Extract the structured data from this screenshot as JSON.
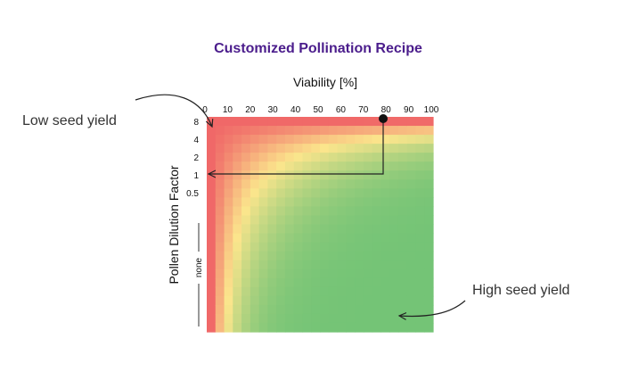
{
  "chart_data": {
    "type": "heatmap",
    "title": "Customized Pollination Recipe",
    "title_color": "#4b1d8c",
    "xlabel": "Viability [%]",
    "ylabel": "Pollen Dilution Factor",
    "x_ticks": [
      "0",
      "10",
      "20",
      "30",
      "40",
      "50",
      "60",
      "70",
      "80",
      "90",
      "100"
    ],
    "y_ticks": [
      "8",
      "4",
      "2",
      "1",
      "0.5",
      "none"
    ],
    "xlim": [
      0,
      100
    ],
    "colors": {
      "low": "#f06868",
      "mid": "#fbe58c",
      "high": "#74c476"
    },
    "annotations": [
      {
        "text": "Low seed yield"
      },
      {
        "text": "High seed yield"
      }
    ],
    "highlight_point": {
      "x": 80,
      "y": "8",
      "y_target": "1"
    }
  }
}
